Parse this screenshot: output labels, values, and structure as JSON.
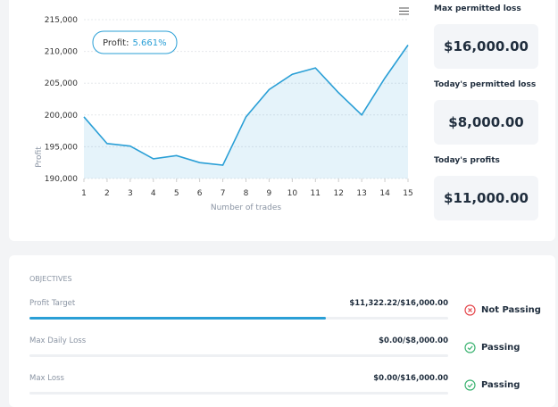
{
  "chart_data": {
    "type": "line",
    "x": [
      1,
      2,
      3,
      4,
      5,
      6,
      7,
      8,
      9,
      10,
      11,
      12,
      13,
      14,
      15
    ],
    "series": [
      {
        "name": "Profit",
        "color": "#2a9fd6",
        "values": [
          199700,
          195500,
          195100,
          193100,
          193600,
          192500,
          192100,
          199700,
          204000,
          206400,
          207400,
          203500,
          200000,
          205800,
          211000
        ]
      }
    ],
    "xlabel": "Number of trades",
    "ylabel": "Profit",
    "xlim": [
      1,
      15
    ],
    "xticks": [
      1,
      2,
      3,
      4,
      5,
      6,
      7,
      8,
      9,
      10,
      11,
      12,
      13,
      14,
      15
    ],
    "ylim": [
      190000,
      215000
    ],
    "yticks": [
      {
        "value": 190000,
        "label": "190,000"
      },
      {
        "value": 195000,
        "label": "195,000"
      },
      {
        "value": 200000,
        "label": "200,000"
      },
      {
        "value": 205000,
        "label": "205,000"
      },
      {
        "value": 210000,
        "label": "210,000"
      },
      {
        "value": 215000,
        "label": "215,000"
      }
    ],
    "grid": true,
    "annotation": {
      "label": "Profit:",
      "value": "5.661%"
    }
  },
  "stats": [
    {
      "label": "Max permitted loss",
      "value": "$16,000.00"
    },
    {
      "label": "Today's permitted loss",
      "value": "$8,000.00"
    },
    {
      "label": "Today's profits",
      "value": "$11,000.00"
    }
  ],
  "objectives": {
    "title": "OBJECTIVES",
    "rows": [
      {
        "label": "Profit Target",
        "value": "$11,322.22/$16,000.00",
        "current": 11322.22,
        "target": 16000,
        "status": "Not Passing"
      },
      {
        "label": "Max Daily Loss",
        "value": "$0.00/$8,000.00",
        "current": 0,
        "target": 8000,
        "status": "Passing"
      },
      {
        "label": "Max Loss",
        "value": "$0.00/$16,000.00",
        "current": 0,
        "target": 16000,
        "status": "Passing"
      }
    ]
  }
}
